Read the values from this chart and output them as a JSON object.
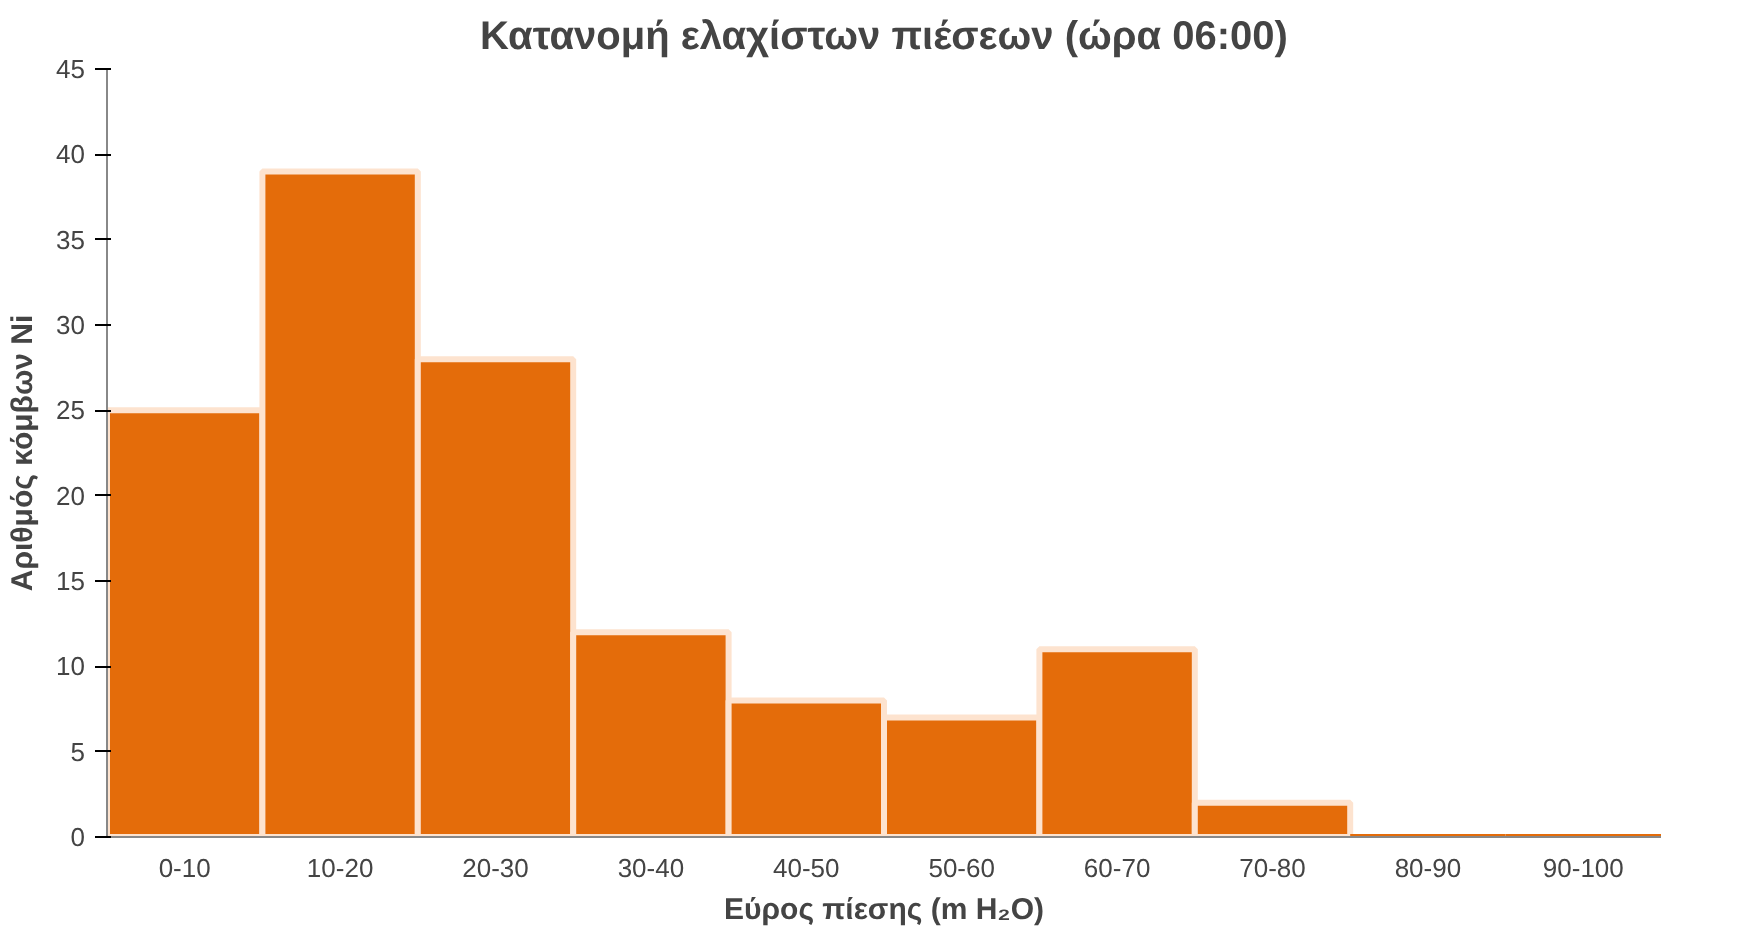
{
  "chart_data": {
    "type": "bar",
    "title": "Κατανομή ελαχίστων πιέσεων (ώρα 06:00)",
    "xlabel": "Εύρος πίεσης (m H₂O)",
    "ylabel": "Αριθμός κόμβων Ni",
    "categories": [
      "0-10",
      "10-20",
      "20-30",
      "30-40",
      "40-50",
      "50-60",
      "60-70",
      "70-80",
      "80-90",
      "90-100"
    ],
    "values": [
      25,
      39,
      28,
      12,
      8,
      7,
      11,
      2,
      0,
      0
    ],
    "color": "#e46c0a",
    "ylim": [
      0,
      45
    ],
    "yticks": [
      0,
      5,
      10,
      15,
      20,
      25,
      30,
      35,
      40,
      45
    ],
    "grid": false
  }
}
